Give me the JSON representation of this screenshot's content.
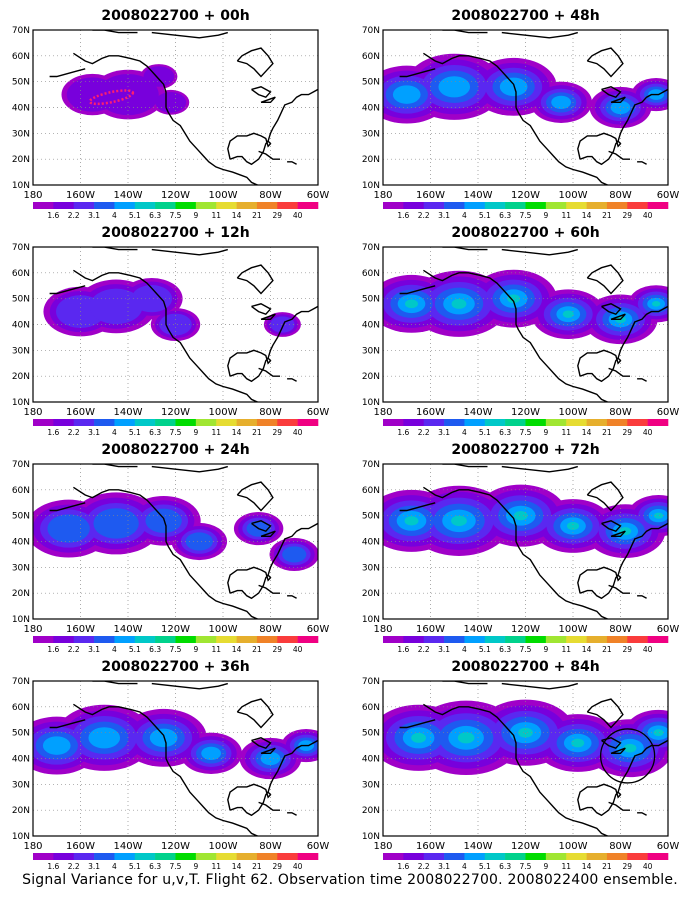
{
  "figure": {
    "caption": "Signal Variance for u,v,T. Flight 62. Observation time 2008022700. 2008022400 ensemble.",
    "lon_labels": [
      "180",
      "160W",
      "140W",
      "120W",
      "100W",
      "80W",
      "60W"
    ],
    "lat_labels": [
      "10N",
      "20N",
      "30N",
      "40N",
      "50N",
      "60N",
      "70N"
    ],
    "colorbar": {
      "levels": [
        "1.6",
        "2.2",
        "3.1",
        "4",
        "5.1",
        "6.3",
        "7.5",
        "9",
        "11",
        "14",
        "21",
        "29",
        "40"
      ],
      "colors": [
        "#a000c8",
        "#7800dc",
        "#5a28f0",
        "#1e5af0",
        "#00a0ff",
        "#00c8c8",
        "#00d28c",
        "#00dc00",
        "#a0e632",
        "#e6dc32",
        "#e6af2d",
        "#f08228",
        "#fa3c3c",
        "#f00082"
      ]
    }
  },
  "panels": [
    {
      "id": "p00",
      "title": "2008022700 + 00h",
      "col": 0,
      "row": 0,
      "intensity": 0
    },
    {
      "id": "p12",
      "title": "2008022700 + 12h",
      "col": 0,
      "row": 1,
      "intensity": 1
    },
    {
      "id": "p24",
      "title": "2008022700 + 24h",
      "col": 0,
      "row": 2,
      "intensity": 2
    },
    {
      "id": "p36",
      "title": "2008022700 + 36h",
      "col": 0,
      "row": 3,
      "intensity": 3
    },
    {
      "id": "p48",
      "title": "2008022700 + 48h",
      "col": 1,
      "row": 0,
      "intensity": 3
    },
    {
      "id": "p60",
      "title": "2008022700 + 60h",
      "col": 1,
      "row": 1,
      "intensity": 4
    },
    {
      "id": "p72",
      "title": "2008022700 + 72h",
      "col": 1,
      "row": 2,
      "intensity": 5
    },
    {
      "id": "p84",
      "title": "2008022700 + 84h",
      "col": 1,
      "row": 3,
      "intensity": 6
    }
  ]
}
